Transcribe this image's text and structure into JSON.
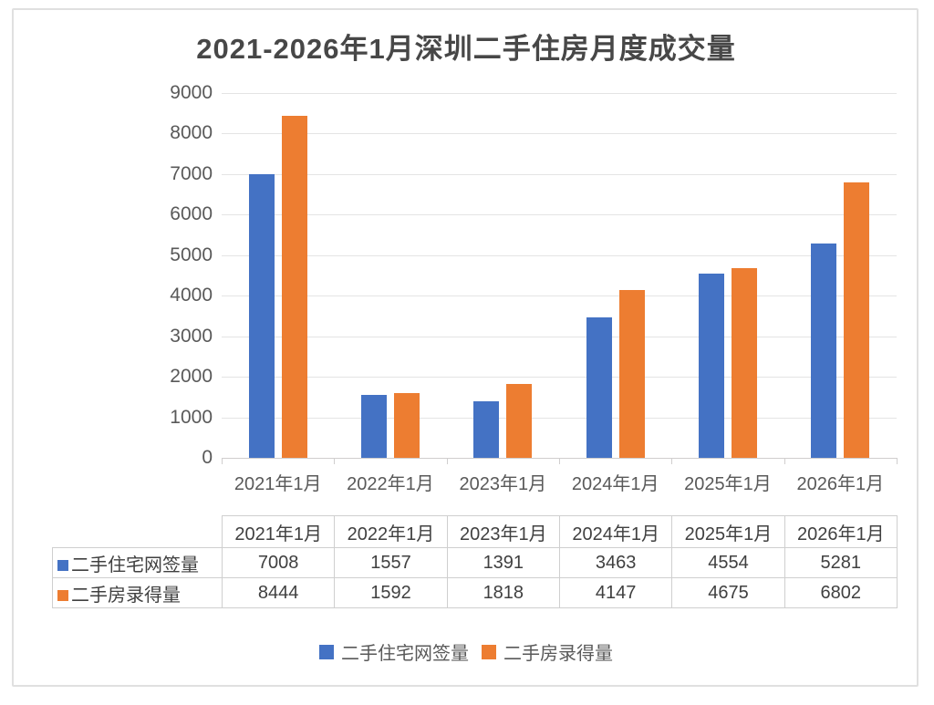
{
  "title": "2021-2026年1月深圳二手住房月度成交量",
  "chart_data": {
    "type": "bar",
    "categories": [
      "2021年1月",
      "2022年1月",
      "2023年1月",
      "2024年1月",
      "2025年1月",
      "2026年1月"
    ],
    "series": [
      {
        "name": "二手住宅网签量",
        "color": "#4472C4",
        "values": [
          7008,
          1557,
          1391,
          3463,
          4554,
          5281
        ]
      },
      {
        "name": "二手房录得量",
        "color": "#ED7D31",
        "values": [
          8444,
          1592,
          1818,
          4147,
          4675,
          6802
        ]
      }
    ],
    "title": "2021-2026年1月深圳二手住房月度成交量",
    "xlabel": "",
    "ylabel": "",
    "ylim": [
      0,
      9000
    ],
    "ytick_step": 1000,
    "grid": true,
    "legend_position": "bottom"
  },
  "table": {
    "corner_label": "",
    "columns": [
      "2021年1月",
      "2022年1月",
      "2023年1月",
      "2024年1月",
      "2025年1月",
      "2026年1月"
    ],
    "rows": [
      {
        "label": "二手住宅网签量",
        "swatch_color": "#4472C4",
        "values": [
          "7008",
          "1557",
          "1391",
          "3463",
          "4554",
          "5281"
        ]
      },
      {
        "label": "二手房录得量",
        "swatch_color": "#ED7D31",
        "values": [
          "8444",
          "1592",
          "1818",
          "4147",
          "4675",
          "6802"
        ]
      }
    ]
  },
  "legend": {
    "items": [
      {
        "label": "二手住宅网签量",
        "color": "#4472C4"
      },
      {
        "label": "二手房录得量",
        "color": "#ED7D31"
      }
    ]
  },
  "colors": {
    "series_blue": "#4472C4",
    "series_orange": "#ED7D31",
    "title_text": "#474747",
    "axis_text": "#595959",
    "gridline": "#e4e4e4",
    "axis_line": "#d0cece",
    "table_border": "#cfcfcf",
    "card_border": "#e0e0e0"
  }
}
